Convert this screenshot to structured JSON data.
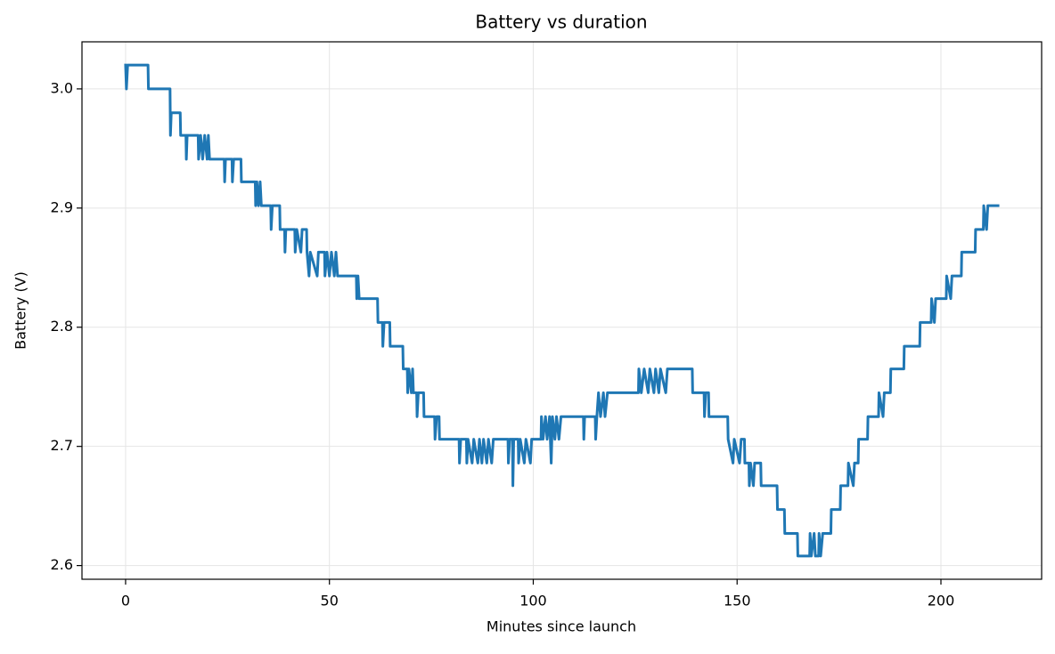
{
  "chart_data": {
    "type": "line",
    "title": "Battery vs duration",
    "x_label": "Minutes since launch",
    "y_label": "Battery (V)",
    "color": "#1f77b4",
    "grid": true,
    "xlim": [
      -10.7,
      224.7
    ],
    "xticks": [
      0,
      50,
      100,
      150,
      200
    ],
    "ylim": [
      2.5885,
      3.0395
    ],
    "yticks": [
      2.6,
      2.7,
      2.8,
      2.9,
      {
        "value": 3,
        "label": "3.0"
      }
    ],
    "x": [
      0,
      0.2,
      0.5,
      5.5,
      5.6,
      10.9,
      11.0,
      11.2,
      13.4,
      13.5,
      14.8,
      14.9,
      15.1,
      17.8,
      17.9,
      18.4,
      18.9,
      19.4,
      20.0,
      20.3,
      20.6,
      24.2,
      24.3,
      24.5,
      26.1,
      26.2,
      26.5,
      28.3,
      28.4,
      31.8,
      31.9,
      32.2,
      32.6,
      33.0,
      33.3,
      35.6,
      35.7,
      36.0,
      37.8,
      37.9,
      39.0,
      39.1,
      39.3,
      41.5,
      41.6,
      42.0,
      43.0,
      43.3,
      44.4,
      44.5,
      45.0,
      45.3,
      47.0,
      47.3,
      48.8,
      48.9,
      49.4,
      50.0,
      50.5,
      51.2,
      51.6,
      52.0,
      56.6,
      56.7,
      57.0,
      57.3,
      61.8,
      61.9,
      63.0,
      63.1,
      63.4,
      64.8,
      64.9,
      68.0,
      68.1,
      69.1,
      69.2,
      69.5,
      70.1,
      70.4,
      70.6,
      71.4,
      71.5,
      71.8,
      73.1,
      73.2,
      75.8,
      75.9,
      76.3,
      76.9,
      77.0,
      81.8,
      81.9,
      82.2,
      83.6,
      83.7,
      84.0,
      85.0,
      85.4,
      86.4,
      86.8,
      87.4,
      87.8,
      88.6,
      89.0,
      89.8,
      90.2,
      93.8,
      93.9,
      94.2,
      94.9,
      95.0,
      95.2,
      96.3,
      96.4,
      96.8,
      97.8,
      98.2,
      99.3,
      99.6,
      101.9,
      102.0,
      102.4,
      103.0,
      103.4,
      104.0,
      104.4,
      104.7,
      105.3,
      105.7,
      106.3,
      106.8,
      112.3,
      112.4,
      112.6,
      115.2,
      115.3,
      115.6,
      116.0,
      116.5,
      117.2,
      117.6,
      118.2,
      125.8,
      125.9,
      126.5,
      127.2,
      128.2,
      128.6,
      129.6,
      130.0,
      130.8,
      131.2,
      132.5,
      132.9,
      139.0,
      139.1,
      141.9,
      142.0,
      142.3,
      143.0,
      143.1,
      147.7,
      147.8,
      149.0,
      149.3,
      150.6,
      151.0,
      151.8,
      151.9,
      152.9,
      153.0,
      153.3,
      154.0,
      154.3,
      155.8,
      155.9,
      159.8,
      159.9,
      161.6,
      161.7,
      164.8,
      164.9,
      167.8,
      167.9,
      168.2,
      168.9,
      169.2,
      170.0,
      170.1,
      170.5,
      171.0,
      173.0,
      173.1,
      175.3,
      175.4,
      177.2,
      177.3,
      178.5,
      178.8,
      179.7,
      179.8,
      182.0,
      182.1,
      184.7,
      184.8,
      185.8,
      186.1,
      187.6,
      187.7,
      190.9,
      191.0,
      194.8,
      194.9,
      197.6,
      197.7,
      198.4,
      198.7,
      201.3,
      201.4,
      202.4,
      202.7,
      205.0,
      205.1,
      208.4,
      208.5,
      210.4,
      210.5,
      211.2,
      211.5,
      214.0
    ],
    "values": [
      3.02,
      3.0,
      3.02,
      3.02,
      3.0,
      3.0,
      2.961,
      2.98,
      2.98,
      2.961,
      2.961,
      2.941,
      2.961,
      2.961,
      2.941,
      2.961,
      2.941,
      2.961,
      2.941,
      2.961,
      2.941,
      2.941,
      2.922,
      2.941,
      2.941,
      2.922,
      2.941,
      2.941,
      2.922,
      2.922,
      2.902,
      2.922,
      2.902,
      2.922,
      2.902,
      2.902,
      2.882,
      2.902,
      2.902,
      2.882,
      2.882,
      2.863,
      2.882,
      2.882,
      2.863,
      2.882,
      2.863,
      2.882,
      2.882,
      2.863,
      2.843,
      2.863,
      2.843,
      2.863,
      2.863,
      2.843,
      2.863,
      2.843,
      2.863,
      2.843,
      2.863,
      2.843,
      2.843,
      2.824,
      2.843,
      2.824,
      2.824,
      2.804,
      2.804,
      2.784,
      2.804,
      2.804,
      2.784,
      2.784,
      2.765,
      2.765,
      2.745,
      2.765,
      2.745,
      2.765,
      2.745,
      2.745,
      2.725,
      2.745,
      2.745,
      2.725,
      2.725,
      2.706,
      2.725,
      2.725,
      2.706,
      2.706,
      2.686,
      2.706,
      2.706,
      2.686,
      2.706,
      2.686,
      2.706,
      2.686,
      2.706,
      2.686,
      2.706,
      2.686,
      2.706,
      2.686,
      2.706,
      2.706,
      2.686,
      2.706,
      2.706,
      2.667,
      2.706,
      2.706,
      2.686,
      2.706,
      2.686,
      2.706,
      2.686,
      2.706,
      2.706,
      2.725,
      2.706,
      2.725,
      2.706,
      2.725,
      2.686,
      2.725,
      2.706,
      2.725,
      2.706,
      2.725,
      2.725,
      2.706,
      2.725,
      2.725,
      2.706,
      2.725,
      2.745,
      2.725,
      2.745,
      2.725,
      2.745,
      2.745,
      2.765,
      2.745,
      2.765,
      2.745,
      2.765,
      2.745,
      2.765,
      2.745,
      2.765,
      2.745,
      2.765,
      2.765,
      2.745,
      2.745,
      2.725,
      2.745,
      2.745,
      2.725,
      2.725,
      2.706,
      2.686,
      2.706,
      2.686,
      2.706,
      2.706,
      2.686,
      2.686,
      2.667,
      2.686,
      2.667,
      2.686,
      2.686,
      2.667,
      2.667,
      2.647,
      2.647,
      2.627,
      2.627,
      2.608,
      2.608,
      2.627,
      2.608,
      2.627,
      2.608,
      2.608,
      2.627,
      2.608,
      2.627,
      2.627,
      2.647,
      2.647,
      2.667,
      2.667,
      2.686,
      2.667,
      2.686,
      2.686,
      2.706,
      2.706,
      2.725,
      2.725,
      2.745,
      2.725,
      2.745,
      2.745,
      2.765,
      2.765,
      2.784,
      2.784,
      2.804,
      2.804,
      2.824,
      2.804,
      2.824,
      2.824,
      2.843,
      2.824,
      2.843,
      2.843,
      2.863,
      2.863,
      2.882,
      2.882,
      2.902,
      2.882,
      2.902,
      2.902
    ]
  }
}
